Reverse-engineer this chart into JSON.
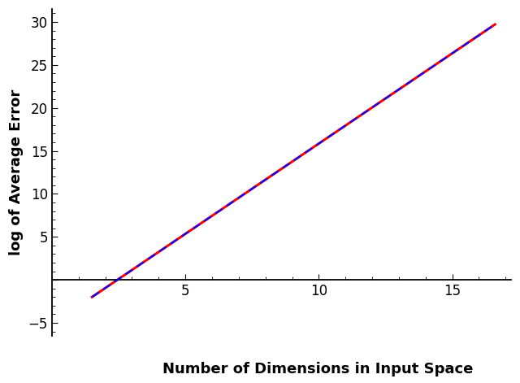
{
  "title": "",
  "xlabel": "Number of Dimensions in Input Space",
  "ylabel": "log of Average Error",
  "xlim": [
    0.0,
    17.2
  ],
  "ylim": [
    -6.5,
    31.5
  ],
  "xticks": [
    5,
    10,
    15
  ],
  "yticks": [
    -5,
    0,
    5,
    10,
    15,
    20,
    25,
    30
  ],
  "x_start": 1.5,
  "x_end": 16.6,
  "line1_slope": 2.1,
  "line1_intercept": -5.15,
  "line1_color": "#ff0000",
  "line1_lw": 2.2,
  "line2_slope": 2.1,
  "line2_intercept": -5.15,
  "line2_color": "#0000ff",
  "line2_lw": 1.5,
  "line2_dashes": [
    5,
    3
  ],
  "background_color": "#ffffff",
  "xlabel_fontsize": 13,
  "ylabel_fontsize": 13,
  "tick_fontsize": 12,
  "xlabel_fontweight": "bold",
  "ylabel_fontweight": "bold",
  "minor_tick_interval": 1
}
